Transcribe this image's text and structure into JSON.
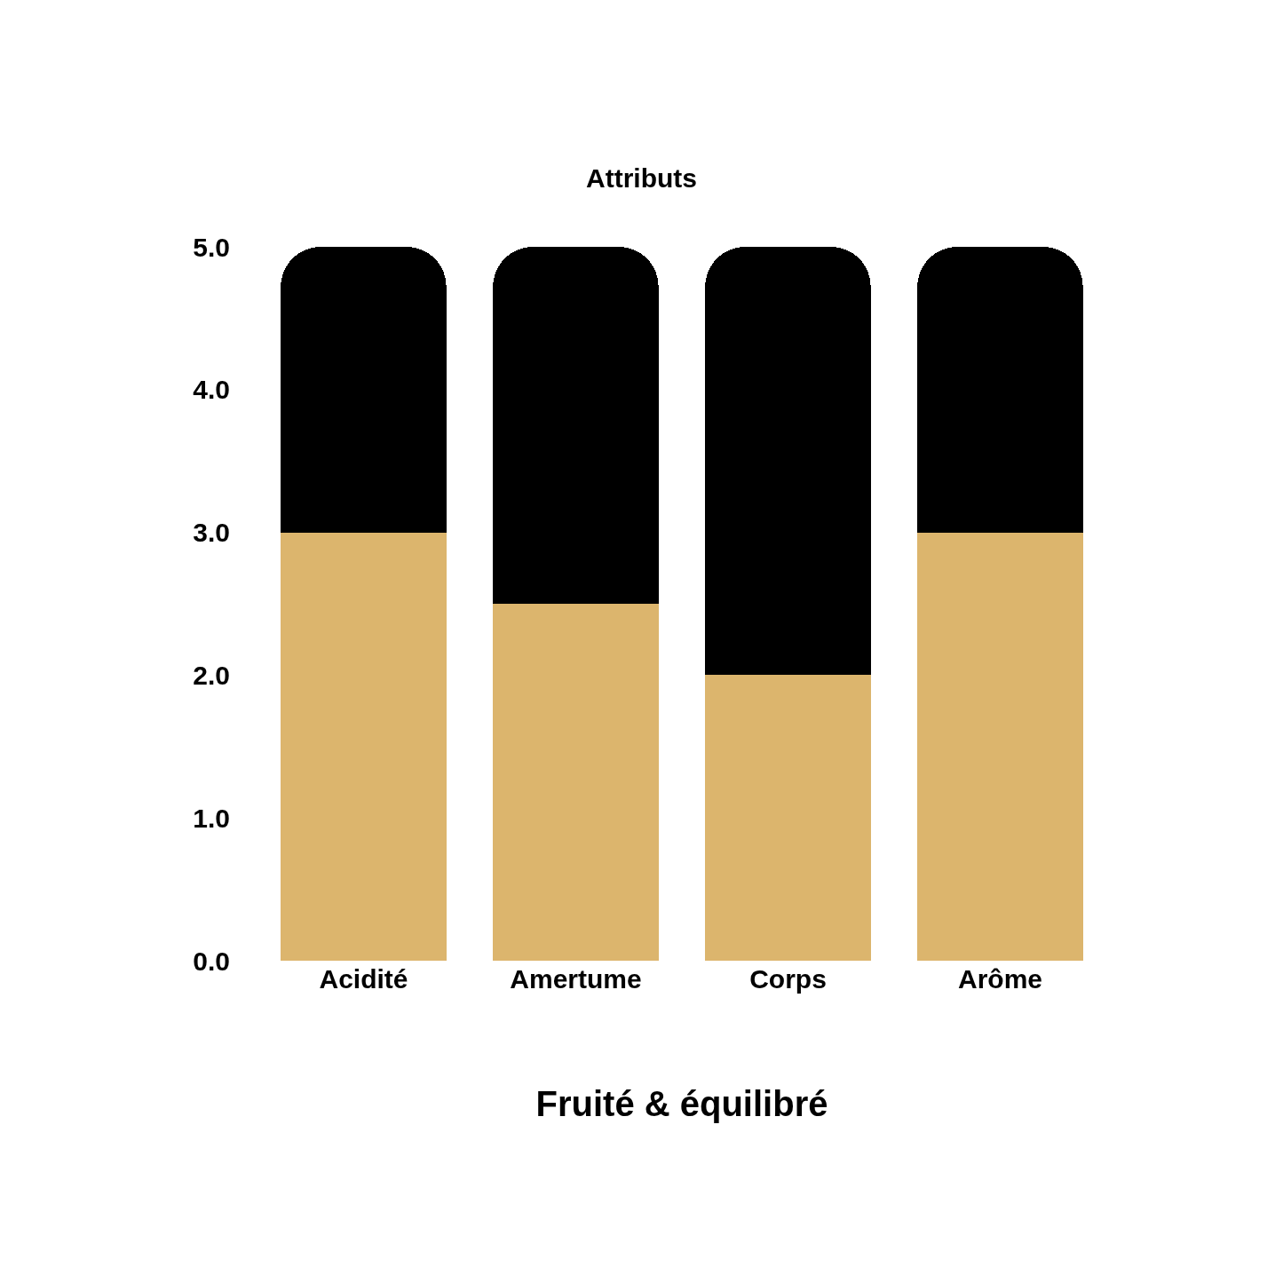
{
  "chart_data": {
    "type": "bar",
    "title": "Attributs",
    "xlabel": "Fruité & équilibré",
    "stacked": true,
    "categories": [
      "Acidité",
      "Amertume",
      "Corps",
      "Arôme"
    ],
    "series": [
      {
        "color": "#dcb56d",
        "values": [
          3,
          2.5,
          2,
          3
        ]
      },
      {
        "color": "#000000",
        "values": [
          2,
          2.5,
          3,
          2
        ]
      }
    ],
    "ylim": [
      0,
      5
    ],
    "yticks": [
      {
        "value": 0,
        "label": "0.0"
      },
      {
        "value": 1,
        "label": "1.0"
      },
      {
        "value": 2,
        "label": "2.0"
      },
      {
        "value": 3,
        "label": "3.0"
      },
      {
        "value": 4,
        "label": "4.0"
      },
      {
        "value": 5,
        "label": "5.0"
      }
    ]
  }
}
